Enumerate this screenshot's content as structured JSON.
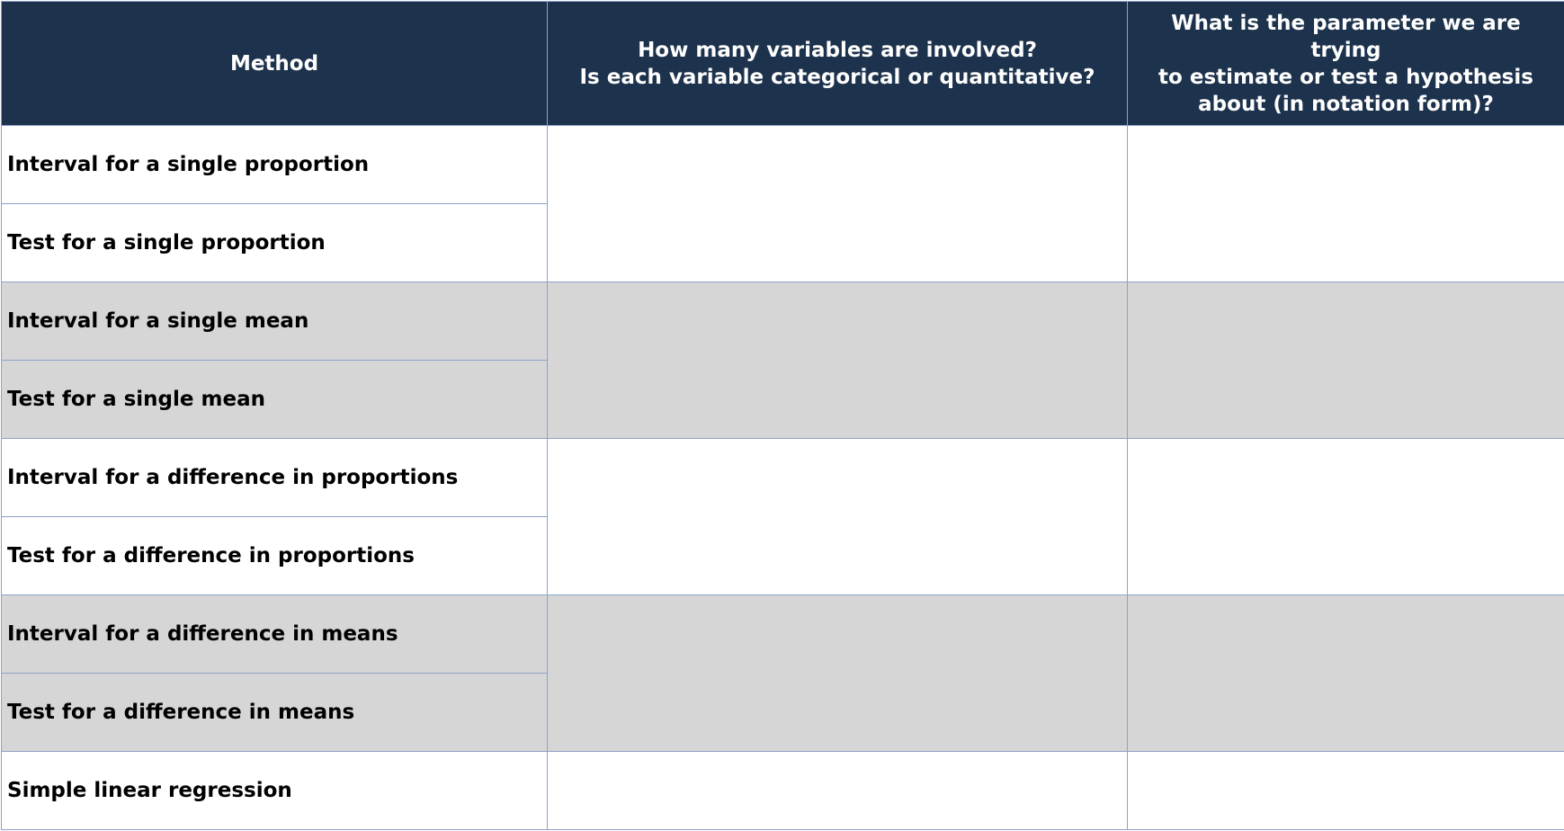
{
  "table": {
    "headers": {
      "method": "Method",
      "variables_line1": "How many variables are involved?",
      "variables_line2": "Is each variable categorical or quantitative?",
      "parameter_line1": "What is the parameter we are trying",
      "parameter_line2": "to estimate or test a hypothesis",
      "parameter_line3": "about (in notation form)?"
    },
    "rows": [
      {
        "method": "Interval for a single proportion",
        "variables": "",
        "parameter": ""
      },
      {
        "method": "Test for a single proportion",
        "variables": "",
        "parameter": ""
      },
      {
        "method": "Interval for a single mean",
        "variables": "",
        "parameter": ""
      },
      {
        "method": "Test for a single mean",
        "variables": "",
        "parameter": ""
      },
      {
        "method": "Interval for a difference in proportions",
        "variables": "",
        "parameter": ""
      },
      {
        "method": "Test for a difference in proportions",
        "variables": "",
        "parameter": ""
      },
      {
        "method": "Interval for a difference in means",
        "variables": "",
        "parameter": ""
      },
      {
        "method": "Test for a difference in means",
        "variables": "",
        "parameter": ""
      },
      {
        "method": "Simple linear regression",
        "variables": "",
        "parameter": ""
      }
    ],
    "colors": {
      "header_bg": "#1d324c",
      "header_text": "#ffffff",
      "shaded_row_bg": "#d6d6d6",
      "plain_row_bg": "#ffffff",
      "border": "#8ea3c7"
    }
  }
}
